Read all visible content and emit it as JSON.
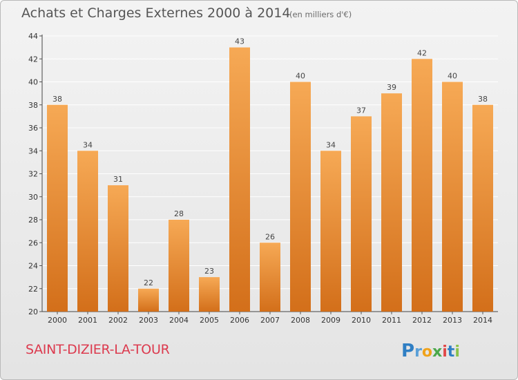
{
  "header": {
    "title": "Achats et Charges Externes 2000 à 2014",
    "subtitle": "(en milliers d'€)"
  },
  "footer": {
    "commune": "SAINT-DIZIER-LA-TOUR",
    "logo_text": "Proxiti"
  },
  "colors": {
    "bar_light": "#f6a955",
    "bar_dark": "#d36f1a",
    "grid": "#ffffff",
    "commune_text": "#dc3a4e"
  },
  "chart_data": {
    "type": "bar",
    "categories": [
      "2000",
      "2001",
      "2002",
      "2003",
      "2004",
      "2005",
      "2006",
      "2007",
      "2008",
      "2009",
      "2010",
      "2011",
      "2012",
      "2013",
      "2014"
    ],
    "values": [
      38,
      34,
      31,
      22,
      28,
      23,
      43,
      26,
      40,
      34,
      37,
      39,
      42,
      40,
      38
    ],
    "title": "Achats et Charges Externes 2000 à 2014",
    "subtitle": "(en milliers d'€)",
    "ylim": [
      20,
      44
    ],
    "yticks": [
      20,
      22,
      24,
      26,
      28,
      30,
      32,
      34,
      36,
      38,
      40,
      42,
      44
    ],
    "grid": true,
    "legend": "none",
    "data_labels": true
  }
}
